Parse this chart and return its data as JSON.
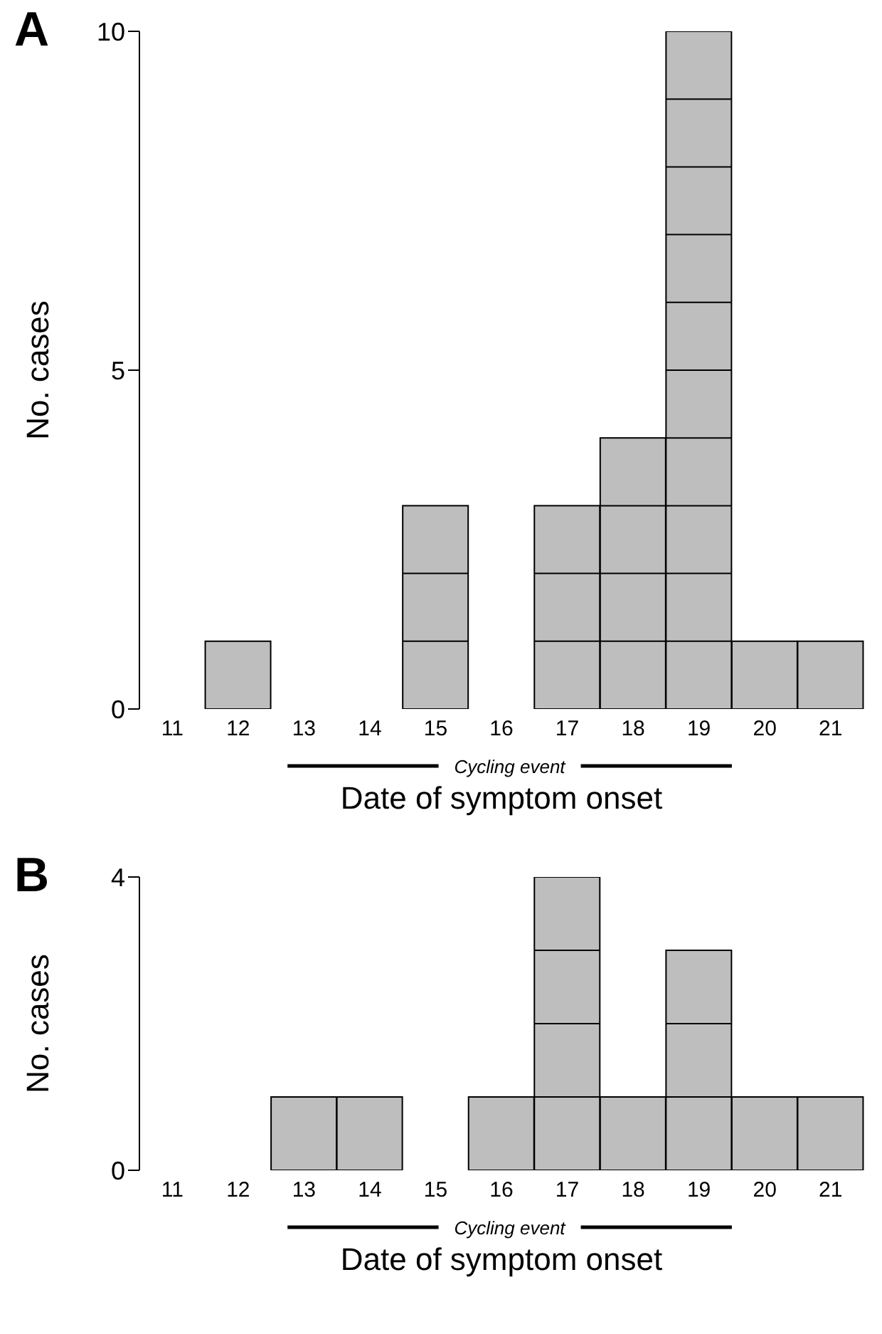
{
  "chart_data": [
    {
      "type": "bar",
      "title": "A",
      "categories": [
        "11",
        "12",
        "13",
        "14",
        "15",
        "16",
        "17",
        "18",
        "19",
        "20",
        "21"
      ],
      "values": [
        0,
        1,
        0,
        0,
        3,
        0,
        3,
        4,
        10,
        1,
        1
      ],
      "color": "#bebebe",
      "ylim": [
        0,
        10
      ],
      "yticks": [
        0,
        5,
        10
      ],
      "xlabel": "Date of symptom onset",
      "ylabel": "No. cases",
      "annotations": [
        "Cycling event"
      ],
      "grid": false,
      "legend": false
    },
    {
      "type": "bar",
      "title": "B",
      "categories": [
        "11",
        "12",
        "13",
        "14",
        "15",
        "16",
        "17",
        "18",
        "19",
        "20",
        "21"
      ],
      "values": [
        0,
        0,
        1,
        1,
        0,
        1,
        4,
        1,
        3,
        1,
        1
      ],
      "color": "#bebebe",
      "ylim": [
        0,
        4
      ],
      "yticks": [
        0,
        4
      ],
      "xlabel": "Date of symptom onset",
      "ylabel": "No. cases",
      "annotations": [
        "Cycling event"
      ],
      "grid": false,
      "legend": false
    }
  ]
}
